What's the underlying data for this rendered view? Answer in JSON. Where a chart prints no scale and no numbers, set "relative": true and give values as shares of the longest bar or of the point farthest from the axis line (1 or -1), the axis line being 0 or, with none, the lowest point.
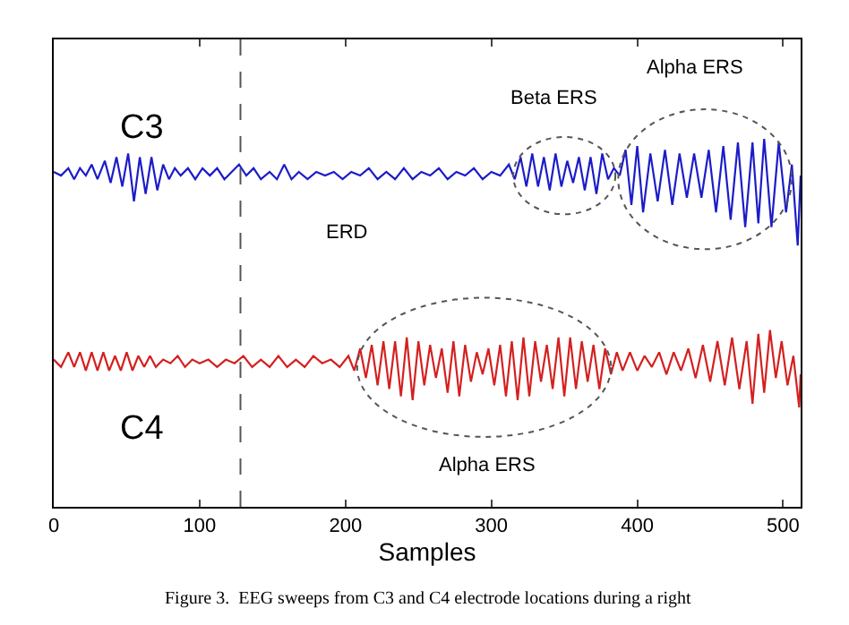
{
  "chart_data": {
    "type": "line",
    "relative": true,
    "xlabel": "Samples",
    "xlim": [
      0,
      512
    ],
    "xticks": [
      0,
      100,
      200,
      300,
      400,
      500
    ],
    "legend": false,
    "ref_lines": [
      {
        "axis": "x",
        "value": 128,
        "color": "#555555",
        "line_style": "dashed"
      }
    ],
    "annotations": [
      "Beta ERS",
      "Alpha ERS",
      "ERD",
      "Alpha ERS",
      "Figure 3.  EEG sweeps from C3 and C4 electrode locations during a right"
    ],
    "series": [
      {
        "name": "C3",
        "color": "#1c1cc8",
        "x": [
          0,
          5,
          10,
          14,
          18,
          22,
          26,
          30,
          35,
          39,
          43,
          47,
          51,
          55,
          59,
          63,
          67,
          71,
          75,
          79,
          83,
          87,
          92,
          97,
          102,
          107,
          112,
          117,
          122,
          127,
          132,
          137,
          142,
          148,
          153,
          158,
          163,
          168,
          174,
          180,
          186,
          192,
          198,
          204,
          210,
          216,
          222,
          228,
          234,
          240,
          246,
          252,
          258,
          264,
          270,
          276,
          282,
          288,
          294,
          300,
          306,
          312,
          316,
          320,
          324,
          328,
          332,
          336,
          340,
          344,
          348,
          352,
          356,
          360,
          364,
          368,
          372,
          376,
          380,
          384,
          388,
          392,
          396,
          400,
          404,
          409,
          414,
          419,
          424,
          429,
          434,
          439,
          444,
          449,
          454,
          459,
          464,
          469,
          474,
          479,
          483,
          487,
          492,
          497,
          502,
          506,
          510,
          512
        ],
        "values": [
          0.91,
          0.9,
          0.92,
          0.89,
          0.92,
          0.9,
          0.93,
          0.89,
          0.94,
          0.88,
          0.95,
          0.87,
          0.96,
          0.83,
          0.95,
          0.85,
          0.95,
          0.86,
          0.93,
          0.89,
          0.92,
          0.9,
          0.92,
          0.89,
          0.92,
          0.9,
          0.92,
          0.89,
          0.91,
          0.93,
          0.9,
          0.92,
          0.89,
          0.91,
          0.89,
          0.93,
          0.89,
          0.91,
          0.89,
          0.91,
          0.9,
          0.91,
          0.89,
          0.91,
          0.9,
          0.92,
          0.89,
          0.91,
          0.89,
          0.92,
          0.89,
          0.91,
          0.9,
          0.92,
          0.89,
          0.91,
          0.9,
          0.92,
          0.89,
          0.91,
          0.9,
          0.93,
          0.89,
          0.95,
          0.87,
          0.96,
          0.87,
          0.95,
          0.86,
          0.96,
          0.87,
          0.94,
          0.88,
          0.95,
          0.86,
          0.95,
          0.85,
          0.96,
          0.89,
          0.92,
          0.9,
          0.97,
          0.82,
          0.98,
          0.8,
          0.96,
          0.83,
          0.97,
          0.82,
          0.96,
          0.84,
          0.96,
          0.84,
          0.97,
          0.8,
          0.98,
          0.78,
          0.99,
          0.76,
          0.99,
          0.77,
          1.0,
          0.76,
          0.99,
          0.8,
          0.93,
          0.71,
          0.9
        ]
      },
      {
        "name": "C4",
        "color": "#d42020",
        "x": [
          0,
          5,
          10,
          14,
          18,
          22,
          26,
          30,
          34,
          38,
          42,
          46,
          50,
          54,
          58,
          62,
          66,
          70,
          75,
          80,
          85,
          90,
          95,
          100,
          106,
          112,
          118,
          124,
          130,
          136,
          142,
          148,
          154,
          160,
          166,
          172,
          178,
          184,
          190,
          196,
          202,
          206,
          210,
          214,
          218,
          222,
          226,
          230,
          234,
          238,
          242,
          246,
          250,
          254,
          258,
          262,
          266,
          270,
          274,
          278,
          282,
          286,
          290,
          294,
          298,
          302,
          306,
          310,
          314,
          318,
          322,
          326,
          330,
          334,
          338,
          342,
          346,
          350,
          354,
          358,
          362,
          366,
          370,
          374,
          378,
          382,
          386,
          390,
          395,
          400,
          405,
          410,
          415,
          420,
          425,
          430,
          435,
          440,
          445,
          450,
          455,
          460,
          465,
          470,
          475,
          479,
          483,
          487,
          491,
          495,
          499,
          503,
          507,
          511,
          512
        ],
        "values": [
          0.4,
          0.38,
          0.42,
          0.38,
          0.42,
          0.37,
          0.42,
          0.37,
          0.42,
          0.37,
          0.41,
          0.37,
          0.42,
          0.37,
          0.41,
          0.38,
          0.41,
          0.38,
          0.4,
          0.39,
          0.41,
          0.38,
          0.4,
          0.39,
          0.4,
          0.38,
          0.4,
          0.39,
          0.41,
          0.38,
          0.4,
          0.38,
          0.41,
          0.38,
          0.4,
          0.38,
          0.41,
          0.39,
          0.4,
          0.38,
          0.41,
          0.37,
          0.43,
          0.35,
          0.44,
          0.33,
          0.45,
          0.32,
          0.45,
          0.3,
          0.46,
          0.29,
          0.45,
          0.33,
          0.44,
          0.35,
          0.43,
          0.31,
          0.45,
          0.3,
          0.44,
          0.34,
          0.42,
          0.36,
          0.43,
          0.33,
          0.44,
          0.3,
          0.45,
          0.29,
          0.46,
          0.3,
          0.45,
          0.34,
          0.44,
          0.32,
          0.46,
          0.3,
          0.46,
          0.32,
          0.45,
          0.34,
          0.44,
          0.32,
          0.43,
          0.36,
          0.42,
          0.37,
          0.42,
          0.37,
          0.41,
          0.38,
          0.42,
          0.36,
          0.42,
          0.37,
          0.43,
          0.35,
          0.44,
          0.34,
          0.45,
          0.33,
          0.46,
          0.32,
          0.45,
          0.28,
          0.47,
          0.31,
          0.48,
          0.35,
          0.45,
          0.33,
          0.41,
          0.27,
          0.36
        ]
      }
    ]
  }
}
